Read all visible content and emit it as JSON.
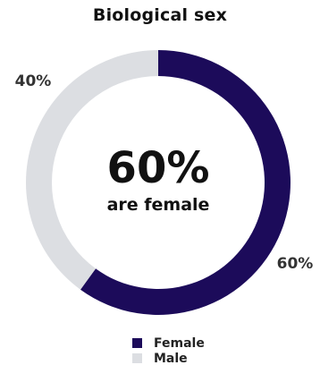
{
  "chart_data": {
    "type": "pie",
    "title": "Biological sex",
    "center_value": "60%",
    "center_caption": "are female",
    "categories": [
      "Female",
      "Male"
    ],
    "values": [
      60,
      40
    ],
    "labels": [
      "60%",
      "40%"
    ],
    "colors": [
      "#1c0b5a",
      "#dcdee2"
    ],
    "legend_position": "bottom"
  }
}
